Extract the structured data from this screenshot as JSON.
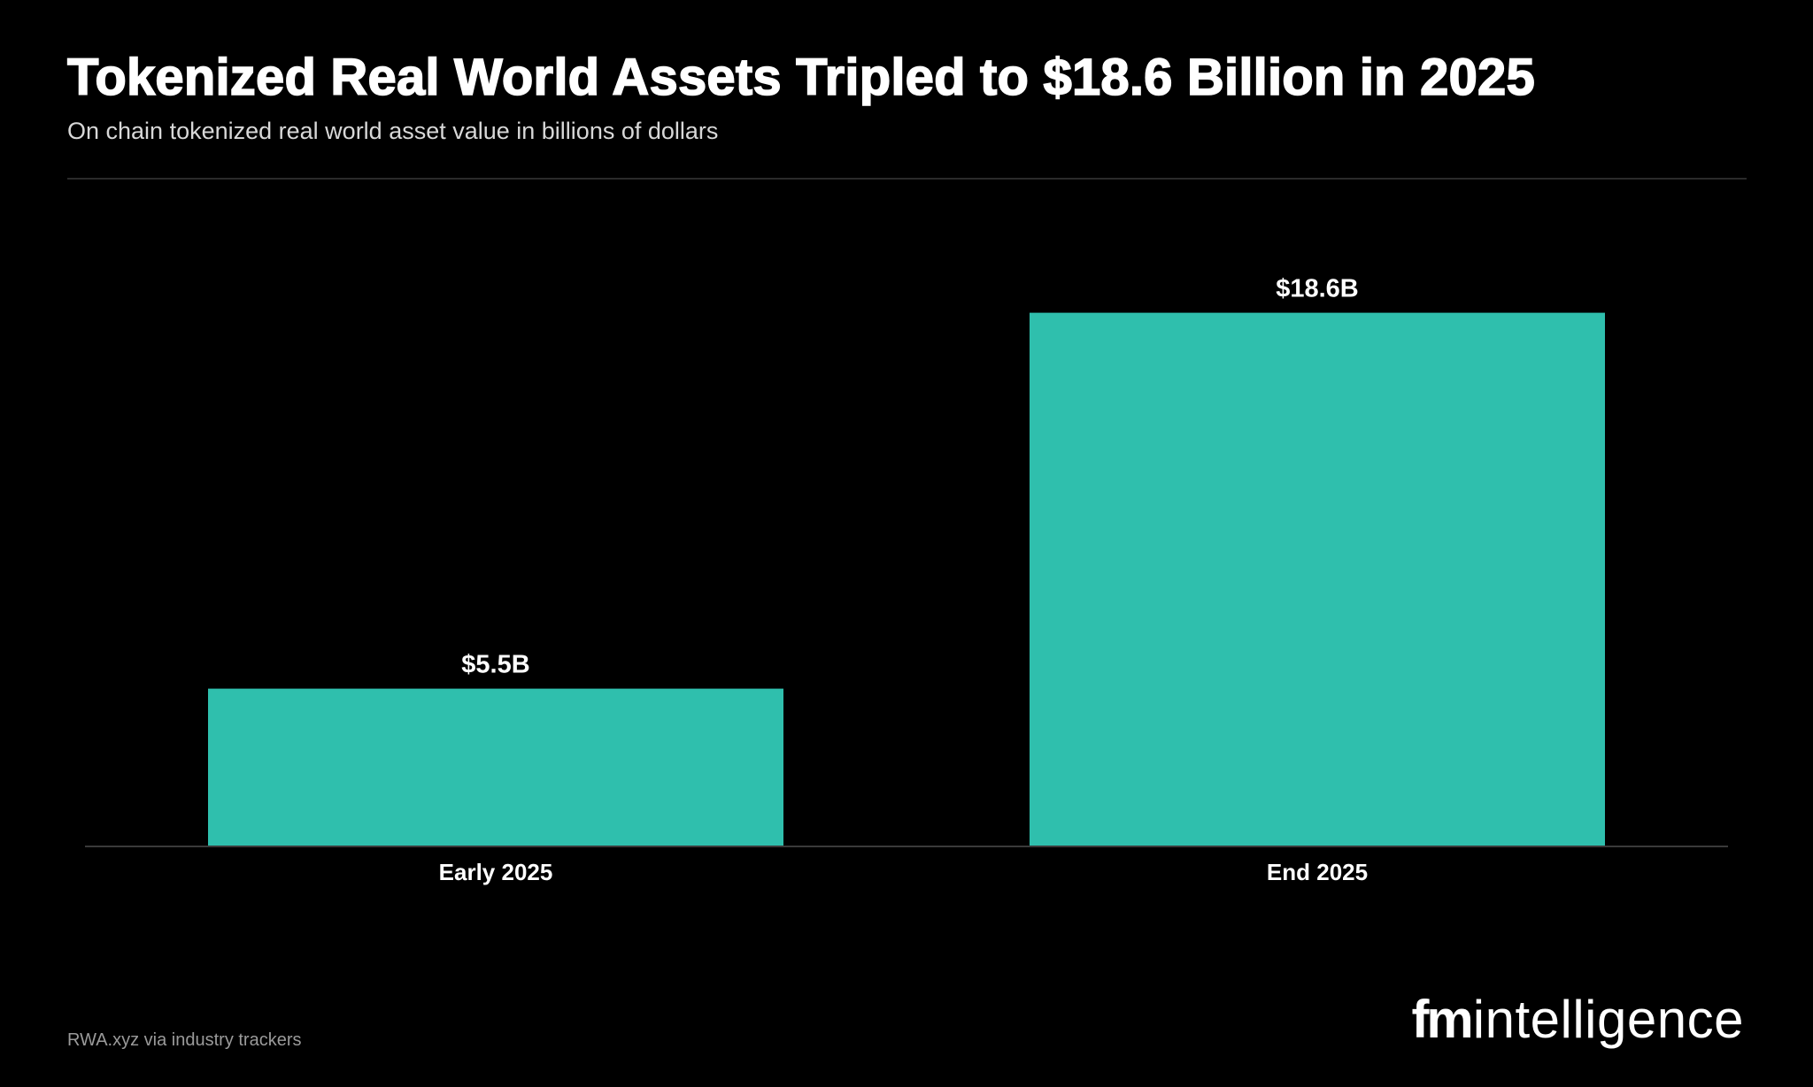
{
  "title": "Tokenized Real World Assets Tripled to $18.6 Billion in 2025",
  "subtitle": "On chain tokenized real world asset value in billions of dollars",
  "source": "RWA.xyz via industry trackers",
  "brand": {
    "logo_bold": "fm",
    "logo_light": "intelligence"
  },
  "colors": {
    "background": "#000000",
    "bar": "#2fbfad",
    "text": "#ffffff"
  },
  "chart_data": {
    "type": "bar",
    "title": "Tokenized Real World Assets Tripled to $18.6 Billion in 2025",
    "subtitle": "On chain tokenized real world asset value in billions of dollars",
    "xlabel": "",
    "ylabel": "",
    "categories": [
      "Early 2025",
      "End 2025"
    ],
    "values": [
      5.5,
      18.6
    ],
    "data_labels": [
      "$5.5B",
      "$18.6B"
    ],
    "ylim": [
      0,
      20.5
    ],
    "grid": false,
    "legend": "none"
  }
}
